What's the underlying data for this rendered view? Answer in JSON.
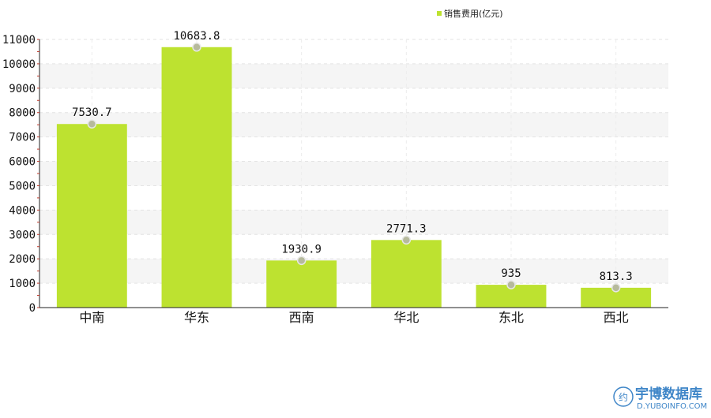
{
  "chart_data": {
    "type": "bar",
    "categories": [
      "中南",
      "华东",
      "西南",
      "华北",
      "东北",
      "西北"
    ],
    "series": [
      {
        "name": "销售费用(亿元)",
        "values": [
          7530.7,
          10683.8,
          1930.9,
          2771.3,
          935,
          813.3
        ]
      }
    ],
    "data_labels": [
      "7530.7",
      "10683.8",
      "1930.9",
      "2771.3",
      "935",
      "813.3"
    ],
    "ylim": [
      0,
      11000
    ],
    "yticks": [
      0,
      1000,
      2000,
      3000,
      4000,
      5000,
      6000,
      7000,
      8000,
      9000,
      10000,
      11000
    ],
    "legend_position": "top-right",
    "grid": true,
    "colors": {
      "bar": "#bde230",
      "band": "#f5f5f5",
      "marker": "#b6ba9c"
    }
  },
  "watermark": {
    "logo_glyph": "约",
    "name": "宇博数据库",
    "url": "D.YUBOINFO.COM"
  }
}
